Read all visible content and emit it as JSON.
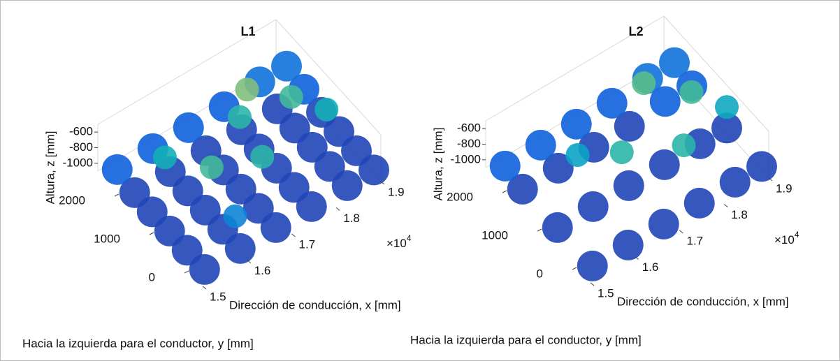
{
  "chart_data": [
    {
      "type": "scatter3d",
      "title": "L1",
      "zlabel": "Altura, z [mm]",
      "xlabel": "Dirección de conducción, x [mm]",
      "ylabel": "Hacia la izquierda para el conductor, y [mm]",
      "x_multiplier": "×10",
      "x_exponent": "4",
      "xlim": [
        1.5,
        1.9
      ],
      "ylim": [
        -400,
        2600
      ],
      "zlim": [
        -1100,
        -500
      ],
      "xticks": [
        1.5,
        1.6,
        1.7,
        1.8,
        1.9
      ],
      "yticks": [
        0,
        1000,
        2000
      ],
      "zticks": [
        -600,
        -800,
        -1000
      ],
      "colormap": "parula",
      "x": [
        1.52,
        1.52,
        1.52,
        1.52,
        1.52,
        1.52,
        1.6,
        1.6,
        1.6,
        1.6,
        1.6,
        1.6,
        1.68,
        1.68,
        1.68,
        1.68,
        1.68,
        1.68,
        1.76,
        1.76,
        1.76,
        1.76,
        1.76,
        1.76,
        1.84,
        1.84,
        1.84,
        1.84,
        1.84,
        1.84,
        1.9,
        1.9,
        1.9,
        1.9,
        1.9,
        1.9,
        1.63,
        1.58,
        1.72,
        1.78,
        1.84,
        1.74,
        1.88,
        1.62
      ],
      "y": [
        -200,
        300,
        800,
        1300,
        1800,
        2300,
        -200,
        300,
        800,
        1300,
        1800,
        2300,
        -200,
        300,
        800,
        1300,
        1800,
        2300,
        -200,
        300,
        800,
        1300,
        1800,
        2300,
        -200,
        300,
        800,
        1300,
        1800,
        2300,
        -200,
        300,
        800,
        1300,
        1800,
        2300,
        1000,
        1700,
        700,
        1900,
        1400,
        1600,
        900,
        200
      ],
      "z": [
        -1050,
        -1050,
        -1050,
        -1050,
        -1050,
        -1000,
        -1050,
        -1050,
        -1050,
        -1050,
        -1050,
        -1000,
        -1050,
        -1050,
        -1050,
        -1050,
        -1050,
        -1000,
        -1050,
        -1050,
        -1050,
        -1050,
        -1050,
        -1000,
        -1050,
        -1050,
        -1050,
        -1050,
        -1050,
        -950,
        -1050,
        -1050,
        -1050,
        -1050,
        -1000,
        -950,
        -700,
        -750,
        -720,
        -650,
        -700,
        -720,
        -750,
        -900
      ]
    },
    {
      "type": "scatter3d",
      "title": "L2",
      "zlabel": "Altura, z [mm]",
      "xlabel": "Dirección de conducción, x [mm]",
      "ylabel": "Hacia la izquierda para el conductor, y [mm]",
      "x_multiplier": "×10",
      "x_exponent": "4",
      "xlim": [
        1.5,
        1.9
      ],
      "ylim": [
        -400,
        2600
      ],
      "zlim": [
        -1100,
        -500
      ],
      "xticks": [
        1.5,
        1.6,
        1.7,
        1.8,
        1.9
      ],
      "yticks": [
        0,
        1000,
        2000
      ],
      "zticks": [
        -600,
        -800,
        -1000
      ],
      "colormap": "parula",
      "x": [
        1.52,
        1.52,
        1.52,
        1.52,
        1.6,
        1.6,
        1.6,
        1.6,
        1.68,
        1.68,
        1.68,
        1.68,
        1.76,
        1.76,
        1.76,
        1.76,
        1.84,
        1.84,
        1.84,
        1.84,
        1.9,
        1.9,
        1.9,
        1.9,
        1.62,
        1.68,
        1.78,
        1.8,
        1.86,
        1.9
      ],
      "y": [
        -200,
        800,
        1800,
        2300,
        -200,
        800,
        1800,
        2300,
        -200,
        800,
        1800,
        2300,
        -200,
        800,
        1800,
        2300,
        -200,
        800,
        1800,
        2300,
        -200,
        800,
        1800,
        2300,
        1500,
        1000,
        500,
        1900,
        1300,
        800
      ],
      "z": [
        -1050,
        -1050,
        -1050,
        -1000,
        -1050,
        -1050,
        -1050,
        -1000,
        -1050,
        -1050,
        -1050,
        -1000,
        -1050,
        -1050,
        -1050,
        -1000,
        -1050,
        -1050,
        -1000,
        -950,
        -1050,
        -1050,
        -1000,
        -950,
        -800,
        -720,
        -720,
        -680,
        -700,
        -780
      ]
    }
  ]
}
